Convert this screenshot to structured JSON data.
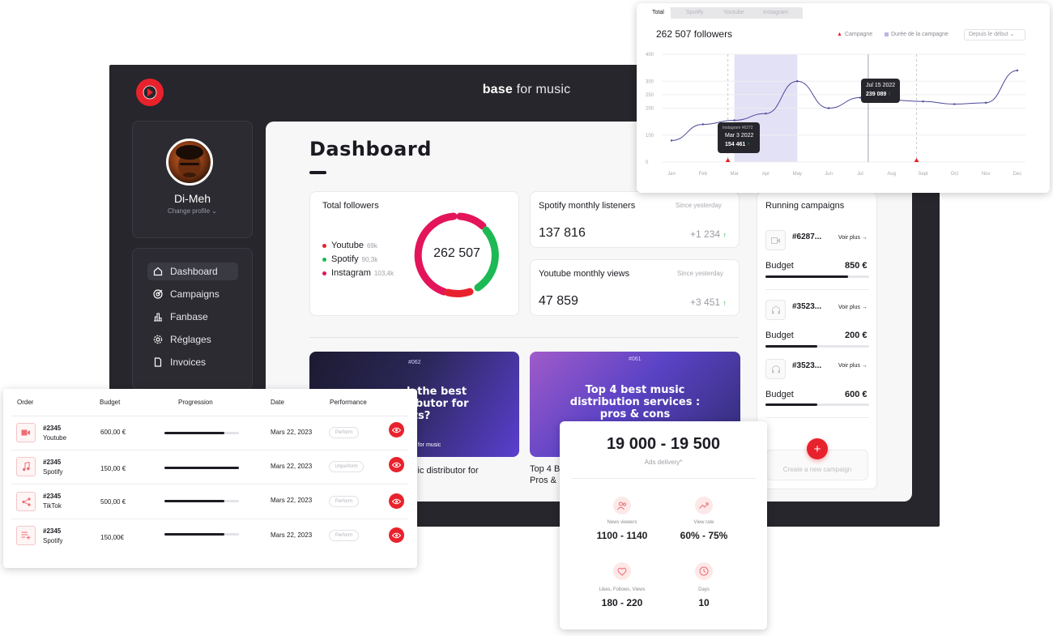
{
  "app": {
    "brand_bold": "base",
    "brand_light": " for music"
  },
  "profile": {
    "name": "Di-Meh",
    "change_label": "Change profile"
  },
  "nav": {
    "items": [
      {
        "label": "Dashboard",
        "icon": "home-icon",
        "active": true
      },
      {
        "label": "Campaigns",
        "icon": "target-icon",
        "active": false
      },
      {
        "label": "Fanbase",
        "icon": "bar-chart-icon",
        "active": false
      },
      {
        "label": "Réglages",
        "icon": "gear-icon",
        "active": false
      },
      {
        "label": "Invoices",
        "icon": "document-icon",
        "active": false
      }
    ]
  },
  "dashboard": {
    "title": "Dashboard",
    "total_followers": {
      "title": "Total followers",
      "value": "262 507",
      "legend": [
        {
          "label": "Youtube",
          "small": "69k",
          "color": "#e8222d"
        },
        {
          "label": "Spotify",
          "small": "90,3k",
          "color": "#1db954"
        },
        {
          "label": "Instagram",
          "small": "103,4k",
          "color": "#e4145a"
        }
      ]
    },
    "spotify": {
      "title": "Spotify monthly listeners",
      "since": "Since yesterday",
      "value": "137 816",
      "delta": "+1 234",
      "arrow": "↑"
    },
    "youtube": {
      "title": "Youtube monthly views",
      "since": "Since yesterday",
      "value": "47 859",
      "delta": "+3 451",
      "arrow": "↑"
    },
    "blogs": [
      {
        "tag": "#062",
        "headline": "k the best\nributor for\nsts?",
        "footer": "e for music",
        "caption": "sic distributor for"
      },
      {
        "tag": "#061",
        "headline": "Top 4 best music\ndistribution services :\npros & cons",
        "caption": "Top 4 B\nPros &"
      }
    ]
  },
  "campaigns": {
    "title": "Running campaigns",
    "items": [
      {
        "id": "#6287...",
        "more": "Voir plus →",
        "budget_label": "Budget",
        "amount": "850 €",
        "progress": 0.8,
        "icon": "video-icon"
      },
      {
        "id": "#3523...",
        "more": "Voir plus →",
        "budget_label": "Budget",
        "amount": "200 €",
        "progress": 0.5,
        "icon": "headphones-icon"
      },
      {
        "id": "#3523...",
        "more": "Voir plus →",
        "budget_label": "Budget",
        "amount": "600 €",
        "progress": 0.5,
        "icon": "headphones-icon"
      }
    ],
    "create_label": "Create a new campaign",
    "create_icon": "+"
  },
  "chart_card": {
    "tabs": [
      "Total",
      "Spotify",
      "Youtube",
      "Instagram"
    ],
    "title": "262 507 followers",
    "legend_campaign": "Campagne",
    "legend_duration": "Durée de la campagne",
    "select_value": "Depuis le début",
    "tooltip1": {
      "source": "Instagram #6372",
      "date": "Mar 3 2022",
      "value": "154 461",
      "arrow": "↑"
    },
    "tooltip2": {
      "date": "Jul 15 2022",
      "value": "239 089",
      "arrow": "↑"
    }
  },
  "chart_data": {
    "type": "line",
    "x": [
      "Jan",
      "Feb",
      "Mar",
      "Apr",
      "May",
      "Jun",
      "Jul",
      "Aug",
      "Sept",
      "Oct",
      "Nov",
      "Dec"
    ],
    "y_ticks": [
      0,
      100,
      200,
      250,
      300,
      400
    ],
    "y_tick_labels": [
      "0",
      "100",
      "200",
      "250",
      "300",
      "400"
    ],
    "ylim": [
      0,
      400
    ],
    "series": [
      {
        "values": [
          80,
          140,
          155,
          180,
          300,
          200,
          239,
          230,
          225,
          215,
          220,
          340
        ]
      }
    ],
    "campaign_markers": [
      "Mar",
      "Sept"
    ],
    "campaign_duration": [
      "Mar",
      "May"
    ],
    "grid": true
  },
  "orders": {
    "headers": [
      "Order",
      "Budget",
      "Progression",
      "Date",
      "Performance"
    ],
    "rows": [
      {
        "id": "#2345",
        "platform": "Youtube",
        "budget": "600,00 €",
        "progress": 0.8,
        "date": "Mars 22, 2023",
        "perf": "Perform",
        "icon": "video-icon"
      },
      {
        "id": "#2345",
        "platform": "Spotify",
        "budget": "150,00 €",
        "progress": 1.0,
        "date": "Mars 22, 2023",
        "perf": "Unperform",
        "icon": "music-note-icon"
      },
      {
        "id": "#2345",
        "platform": "TikTok",
        "budget": "500,00 €",
        "progress": 0.8,
        "date": "Mars 22,  2023",
        "perf": "Perform",
        "icon": "share-icon"
      },
      {
        "id": "#2345",
        "platform": "Spotify",
        "budget": "150,00€",
        "progress": 0.8,
        "date": "Mars 22, 2023",
        "perf": "Perform",
        "icon": "playlist-icon"
      }
    ]
  },
  "ads": {
    "range": "19 000 - 19 500",
    "sub": "Ads delivery*",
    "stats": [
      {
        "label": "News  viewers",
        "value": "1100 - 1140",
        "icon": "users-icon"
      },
      {
        "label": "View rate",
        "value": "60% - 75%",
        "icon": "trend-up-icon"
      },
      {
        "label": "Likes, Follows, Views",
        "value": "180 - 220",
        "icon": "heart-icon"
      },
      {
        "label": "Days",
        "value": "10",
        "icon": "clock-icon"
      }
    ]
  },
  "colors": {
    "accent": "#e8222d",
    "dark_bg": "#26262c",
    "spotify": "#1db954",
    "instagram": "#e4145a"
  }
}
